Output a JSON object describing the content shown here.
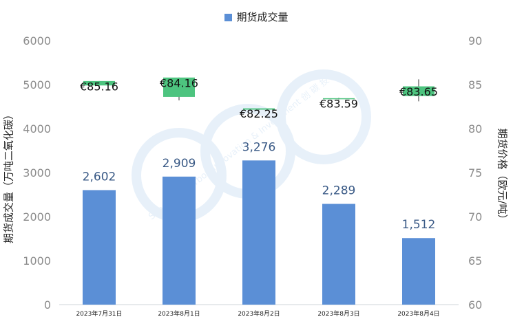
{
  "legend": {
    "series_label": "期货成交量",
    "color": "#5b8fd6"
  },
  "axes": {
    "left_label": "期货成交量（万吨二氧化碳）",
    "right_label": "期货价格（欧元/吨）"
  },
  "watermark": "Shanghai Carbon Innovation & Investment 创 碳 投",
  "chart_data": {
    "type": "bar",
    "categories": [
      "2023年7月31日",
      "2023年8月1日",
      "2023年8月2日",
      "2023年8月3日",
      "2023年8月4日"
    ],
    "series": [
      {
        "name": "期货成交量",
        "type": "bar",
        "axis": "left",
        "values": [
          2602,
          2909,
          3276,
          2289,
          1512
        ],
        "value_labels": [
          "2,602",
          "2,909",
          "3,276",
          "2,289",
          "1,512"
        ],
        "color": "#5b8fd6"
      },
      {
        "type": "candlestick",
        "axis": "right",
        "open": [
          84.9,
          85.8,
          82.3,
          83.35,
          83.7
        ],
        "close": [
          85.4,
          83.6,
          82.15,
          83.45,
          84.8
        ],
        "high": [
          85.4,
          85.8,
          82.3,
          83.5,
          85.6
        ],
        "low": [
          84.5,
          83.2,
          82.1,
          83.3,
          83.1
        ],
        "value_labels": [
          "€85.16",
          "€84.16",
          "€82.25",
          "€83.59",
          "€83.65"
        ],
        "color": "#4dc47f"
      }
    ],
    "ylim_left": [
      0,
      6000
    ],
    "yticks_left": [
      "0",
      "1000",
      "2000",
      "3000",
      "4000",
      "5000",
      "6000"
    ],
    "ylim_right": [
      60,
      90
    ],
    "yticks_right": [
      "60",
      "65",
      "70",
      "75",
      "80",
      "85",
      "90"
    ],
    "grid": false,
    "legend_position": "top-center"
  }
}
